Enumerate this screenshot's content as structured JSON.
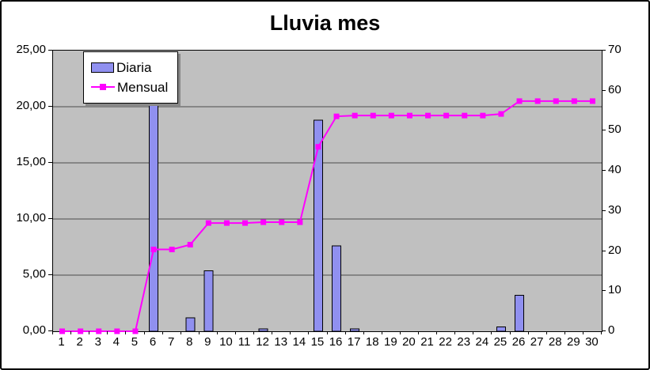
{
  "chart_data": {
    "type": "bar",
    "subtype": "bar-and-line-combo",
    "title": "Lluvia mes",
    "categories": [
      "1",
      "2",
      "3",
      "4",
      "5",
      "6",
      "7",
      "8",
      "9",
      "10",
      "11",
      "12",
      "13",
      "14",
      "15",
      "16",
      "17",
      "18",
      "19",
      "20",
      "21",
      "22",
      "23",
      "24",
      "25",
      "26",
      "27",
      "28",
      "29",
      "30"
    ],
    "series": [
      {
        "name": "Diaria",
        "type": "bar",
        "axis": "left",
        "color": "#9090f0",
        "border_color": "#000000",
        "values": [
          0,
          0,
          0,
          0,
          0,
          20.4,
          0,
          1.2,
          5.4,
          0,
          0,
          0.2,
          0,
          0,
          18.8,
          7.6,
          0.2,
          0,
          0,
          0,
          0,
          0,
          0,
          0,
          0.4,
          3.2,
          0,
          0,
          0,
          0
        ]
      },
      {
        "name": "Mensual",
        "type": "line",
        "axis": "right",
        "color": "#ff00ff",
        "marker": "square",
        "values": [
          0,
          0,
          0,
          0,
          0,
          20.4,
          20.4,
          21.6,
          27.0,
          27.0,
          27.0,
          27.2,
          27.2,
          27.2,
          46.0,
          53.6,
          53.8,
          53.8,
          53.8,
          53.8,
          53.8,
          53.8,
          53.8,
          53.8,
          54.2,
          57.4,
          57.4,
          57.4,
          57.4,
          57.4
        ]
      }
    ],
    "left_axis": {
      "min": 0,
      "max": 25,
      "step": 5,
      "tick_labels": [
        "0,00",
        "5,00",
        "10,00",
        "15,00",
        "20,00",
        "25,00"
      ]
    },
    "right_axis": {
      "min": 0,
      "max": 70,
      "step": 10,
      "tick_labels": [
        "0",
        "10",
        "20",
        "30",
        "40",
        "50",
        "60",
        "70"
      ]
    },
    "x_axis": {
      "min_label": "1",
      "max_label": "30"
    },
    "plot_background": "#c0c0c0",
    "gridline_color": "#4d4d4d",
    "grid": "horizontal-major",
    "legend_position": "inside-top-left",
    "legend_entries": [
      "Diaria",
      "Mensual"
    ]
  }
}
